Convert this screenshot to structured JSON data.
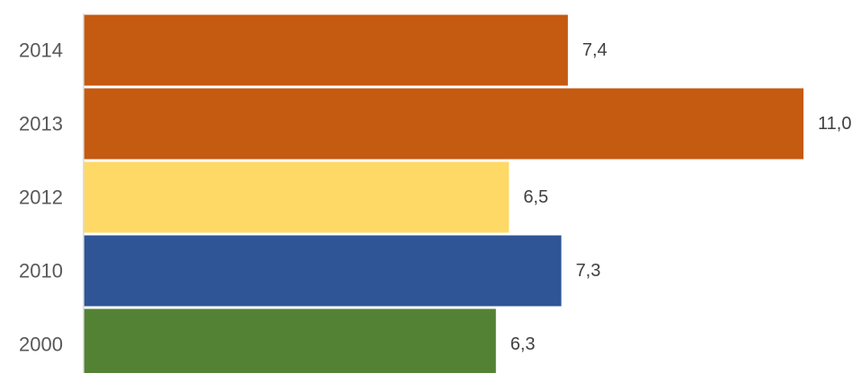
{
  "chart_data": {
    "type": "bar",
    "orientation": "horizontal",
    "title": "",
    "xlabel": "",
    "ylabel": "",
    "categories": [
      "2014",
      "2013",
      "2012",
      "2010",
      "2000"
    ],
    "values": [
      7.4,
      11.0,
      6.5,
      7.3,
      6.3
    ],
    "value_labels": [
      "7,4",
      "11,0",
      "6,5",
      "7,3",
      "6,3"
    ],
    "colors": [
      "#C55A11",
      "#C55A11",
      "#FFD966",
      "#2F5597",
      "#548235"
    ],
    "xlim": [
      0,
      11.0
    ],
    "grid": false,
    "legend": "none"
  }
}
